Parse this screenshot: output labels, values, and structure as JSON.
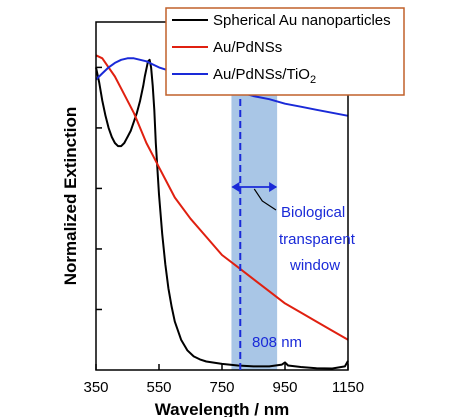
{
  "chart_data": {
    "type": "line",
    "xlabel": "Wavelength / nm",
    "ylabel": "Normalized Extinction",
    "xlim": [
      350,
      1150
    ],
    "ylim": [
      0,
      1.15
    ],
    "x_ticks": [
      "350",
      "550",
      "750",
      "950",
      "1150"
    ],
    "y_tick_count": 6,
    "grid": false,
    "legend_position": "top-right",
    "series": [
      {
        "name": "Spherical Au nanoparticles",
        "color": "#000000",
        "x": [
          350,
          360,
          370,
          380,
          390,
          400,
          410,
          420,
          430,
          440,
          450,
          460,
          470,
          480,
          490,
          500,
          505,
          510,
          515,
          520,
          525,
          530,
          535,
          540,
          550,
          560,
          570,
          580,
          590,
          600,
          620,
          640,
          660,
          680,
          700,
          750,
          800,
          850,
          900,
          940,
          950,
          960,
          1000,
          1050,
          1100,
          1140,
          1150
        ],
        "y": [
          1.0,
          0.95,
          0.89,
          0.84,
          0.8,
          0.77,
          0.75,
          0.74,
          0.74,
          0.75,
          0.77,
          0.79,
          0.82,
          0.85,
          0.89,
          0.94,
          0.97,
          0.995,
          1.02,
          1.025,
          1.0,
          0.94,
          0.86,
          0.75,
          0.58,
          0.45,
          0.35,
          0.27,
          0.21,
          0.16,
          0.1,
          0.065,
          0.045,
          0.035,
          0.028,
          0.02,
          0.015,
          0.012,
          0.012,
          0.018,
          0.025,
          0.015,
          0.01,
          0.006,
          0.005,
          0.012,
          0.03
        ]
      },
      {
        "name": "Au/PdNSs",
        "color": "#e02010",
        "x": [
          350,
          370,
          390,
          410,
          430,
          450,
          470,
          490,
          510,
          530,
          550,
          575,
          600,
          650,
          700,
          750,
          800,
          850,
          900,
          950,
          1000,
          1050,
          1100,
          1150
        ],
        "y": [
          1.04,
          1.03,
          1.0,
          0.97,
          0.93,
          0.89,
          0.85,
          0.8,
          0.75,
          0.71,
          0.67,
          0.62,
          0.57,
          0.5,
          0.44,
          0.38,
          0.34,
          0.3,
          0.26,
          0.22,
          0.19,
          0.16,
          0.13,
          0.1
        ]
      },
      {
        "name": "Au/PdNSs/TiO2",
        "color": "#1a2ad8",
        "x": [
          350,
          370,
          390,
          410,
          430,
          450,
          470,
          490,
          510,
          530,
          550,
          580,
          620,
          660,
          700,
          750,
          800,
          850,
          900,
          950,
          1000,
          1050,
          1100,
          1150
        ],
        "y": [
          0.96,
          0.98,
          1.0,
          1.015,
          1.025,
          1.03,
          1.03,
          1.025,
          1.02,
          1.01,
          1.0,
          0.99,
          0.98,
          0.97,
          0.96,
          0.94,
          0.92,
          0.905,
          0.895,
          0.88,
          0.87,
          0.86,
          0.85,
          0.84
        ]
      }
    ],
    "legend": {
      "entries": [
        {
          "text": "Spherical Au nanoparticles",
          "color": "#000000"
        },
        {
          "text": "Au/PdNSs",
          "color": "#e02010"
        },
        {
          "text": "Au/PdNSs/TiO",
          "sub": "2",
          "color": "#1a2ad8"
        }
      ],
      "border_color": "#c0602a"
    },
    "annotations": {
      "band": {
        "x_from": 780,
        "x_to": 925,
        "color": "#a9c6e6"
      },
      "line": {
        "x": 808,
        "color": "#1a2ad8",
        "label": "808 nm"
      },
      "window_label": [
        "Biological",
        "transparent",
        "window"
      ],
      "label_color": "#1a2ad8"
    }
  }
}
